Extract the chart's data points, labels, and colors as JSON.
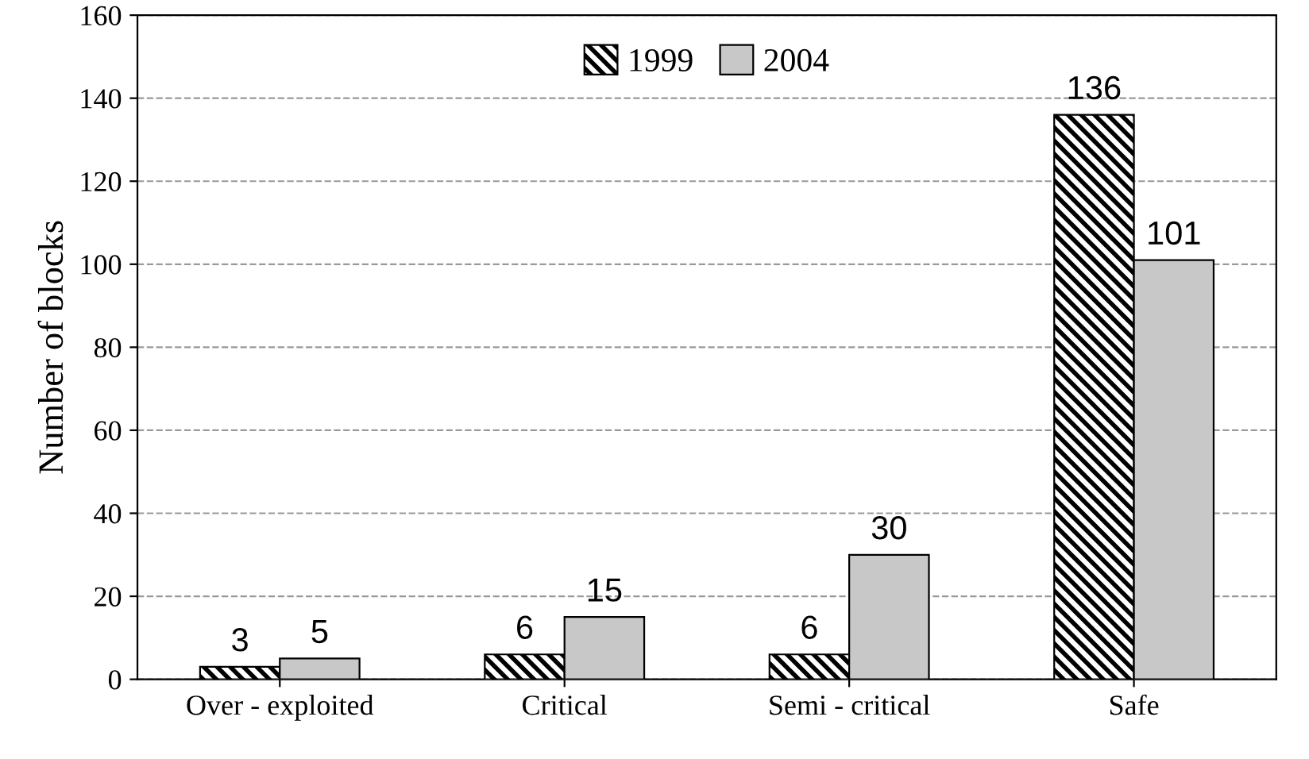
{
  "chart_data": {
    "type": "bar",
    "ylabel": "Number of blocks",
    "categories": [
      "Over - exploited",
      "Critical",
      "Semi - critical",
      "Safe"
    ],
    "series": [
      {
        "name": "1999",
        "color": "#000000",
        "values": [
          3,
          6,
          6,
          136
        ]
      },
      {
        "name": "2004",
        "color": "#c8c8c8",
        "values": [
          5,
          15,
          30,
          101
        ]
      }
    ],
    "ylim": [
      0,
      160
    ],
    "yticks": [
      0,
      20,
      40,
      60,
      80,
      100,
      120,
      140,
      160
    ],
    "grid": "y",
    "legend": "top",
    "data_labels": true
  }
}
